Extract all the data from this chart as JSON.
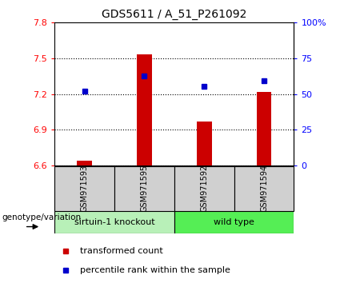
{
  "title": "GDS5611 / A_51_P261092",
  "samples": [
    "GSM971593",
    "GSM971595",
    "GSM971592",
    "GSM971594"
  ],
  "red_values": [
    6.64,
    7.535,
    6.97,
    7.22
  ],
  "blue_values": [
    7.225,
    7.35,
    7.265,
    7.315
  ],
  "ylim_left": [
    6.6,
    7.8
  ],
  "ylim_right": [
    0,
    100
  ],
  "yticks_left": [
    6.6,
    6.9,
    7.2,
    7.5,
    7.8
  ],
  "yticks_right": [
    0,
    25,
    50,
    75,
    100
  ],
  "ytick_labels_left": [
    "6.6",
    "6.9",
    "7.2",
    "7.5",
    "7.8"
  ],
  "ytick_labels_right": [
    "0",
    "25",
    "50",
    "75",
    "100%"
  ],
  "group_labels": [
    "sirtuin-1 knockout",
    "wild type"
  ],
  "knockout_color": "#b8f0b8",
  "wildtype_color": "#55ee55",
  "bar_color": "#CC0000",
  "dot_color": "#0000CC",
  "bar_bottom": 6.6,
  "legend_red": "transformed count",
  "legend_blue": "percentile rank within the sample",
  "xlabel": "genotype/variation",
  "sample_box_color": "#d0d0d0",
  "bar_width": 0.25
}
